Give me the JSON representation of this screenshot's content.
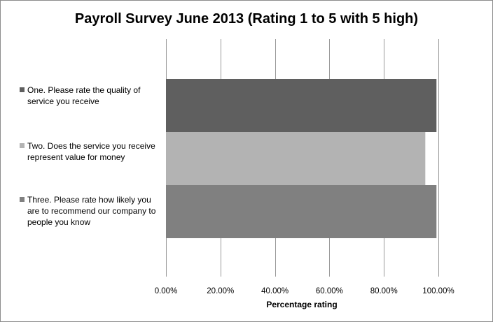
{
  "chart_data": {
    "type": "bar",
    "orientation": "horizontal",
    "title": "Payroll Survey June 2013 (Rating 1 to 5 with 5 high)",
    "xlabel": "Percentage rating",
    "ylabel": "",
    "xlim": [
      0,
      100
    ],
    "x_ticks": [
      "0.00%",
      "20.00%",
      "40.00%",
      "60.00%",
      "80.00%",
      "100.00%"
    ],
    "grid": "vertical gridlines",
    "legend_position": "left",
    "series": [
      {
        "name": "One. Please rate the quality of service you receive",
        "lines": [
          "One. Please rate the quality of",
          "service you receive"
        ],
        "value": 99.3,
        "color": "#5f5f5f"
      },
      {
        "name": "Two. Does the service you receive represent value for money",
        "lines": [
          "Two. Does the service you receive",
          "represent value for money"
        ],
        "value": 95.2,
        "color": "#b3b3b3"
      },
      {
        "name": "Three. Please rate how likely you are to recommend our company to people you know",
        "lines": [
          "Three. Please rate how likely you",
          "are to recommend our company to",
          "people you know"
        ],
        "value": 99.3,
        "color": "#808080"
      }
    ]
  }
}
